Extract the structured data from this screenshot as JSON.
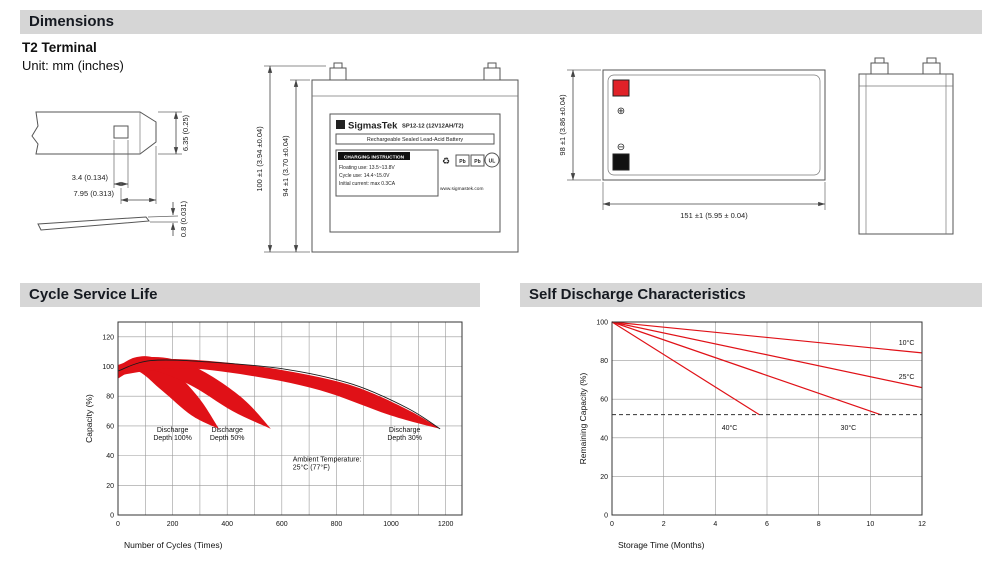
{
  "sections": {
    "dimensions": {
      "title": "Dimensions",
      "subtitle": "T2 Terminal",
      "unit": "Unit: mm (inches)"
    }
  },
  "colors": {
    "accent_red": "#e01117",
    "terminal_red": "#e02228",
    "header_gray": "#d6d6d6"
  },
  "drawings": {
    "terminal": {
      "dim_width_tab": "6.35 (0.25)",
      "dim_hole": "3.4 (0.134)",
      "dim_length": "7.95 (0.313)",
      "dim_thickness": "0.8 (0.031)"
    },
    "front": {
      "dim_total_height": "100 ±1 (3.94 ±0.04)",
      "dim_case_height": "94 ±1 (3.70 ±0.04)",
      "label": {
        "brand": "SigmasTek",
        "model": "SP12-12 (12V12AH/T2)",
        "type_line": "Rechargeable Sealed Lead-Acid Battery",
        "charging_title": "CHARGING INSTRUCTION",
        "charging_line1": "Floating use: 13.5~13.8V",
        "charging_line2": "Cycle use: 14.4~15.0V",
        "charging_line3": "Initial current: max 0.3CA",
        "website": "www.sigmastek.com",
        "recycle_icon": "♻",
        "pb": "Pb",
        "ul": "UL"
      }
    },
    "top": {
      "dim_height": "98 ±1 (3.86 ±0.04)",
      "dim_width": "151 ±1 (5.95 ± 0.04)",
      "plus_symbol": "⊕",
      "minus_symbol": "⊖"
    }
  },
  "chart_data": [
    {
      "id": "cycle-service-life",
      "type": "area",
      "title": "Cycle Service Life",
      "xlabel": "Number of Cycles (Times)",
      "ylabel": "Capacity (%)",
      "xlim": [
        0,
        1260
      ],
      "ylim": [
        0,
        130
      ],
      "xgrid": 100,
      "ygrid": 20,
      "xticks": [
        0,
        200,
        400,
        600,
        800,
        1000,
        1200
      ],
      "yticks": [
        0,
        20,
        40,
        60,
        80,
        100,
        120
      ],
      "grid": true,
      "series": [
        {
          "name": "Discharge Depth 100%",
          "type": "band",
          "color": "#e01117",
          "upper": [
            [
              0,
              100
            ],
            [
              60,
              106
            ],
            [
              130,
              106
            ],
            [
              210,
              96
            ],
            [
              300,
              78
            ],
            [
              370,
              58
            ]
          ],
          "lower": [
            [
              0,
              92
            ],
            [
              70,
              97
            ],
            [
              160,
              84
            ],
            [
              270,
              67
            ],
            [
              370,
              58
            ]
          ]
        },
        {
          "name": "Discharge Depth 50%",
          "type": "band",
          "color": "#e01117",
          "upper": [
            [
              0,
              101
            ],
            [
              90,
              106
            ],
            [
              200,
              105
            ],
            [
              320,
              96
            ],
            [
              460,
              78
            ],
            [
              560,
              58
            ]
          ],
          "lower": [
            [
              0,
              93
            ],
            [
              110,
              98
            ],
            [
              260,
              88
            ],
            [
              420,
              70
            ],
            [
              560,
              58
            ]
          ]
        },
        {
          "name": "Discharge Depth 30%",
          "type": "band",
          "color": "#e01117",
          "upper": [
            [
              0,
              101
            ],
            [
              160,
              105
            ],
            [
              380,
              103
            ],
            [
              620,
              97
            ],
            [
              860,
              87
            ],
            [
              1060,
              71
            ],
            [
              1180,
              58
            ]
          ],
          "lower": [
            [
              0,
              94
            ],
            [
              220,
              99
            ],
            [
              480,
              94
            ],
            [
              740,
              84
            ],
            [
              1000,
              67
            ],
            [
              1180,
              58
            ]
          ]
        },
        {
          "name": "envelope",
          "type": "line",
          "color": "#1a1a1a",
          "width": 0.9,
          "points": [
            [
              0,
              97
            ],
            [
              120,
              104
            ],
            [
              340,
              103
            ],
            [
              620,
              98
            ],
            [
              860,
              88
            ],
            [
              1060,
              72
            ],
            [
              1180,
              58
            ]
          ]
        }
      ],
      "annotations": [
        {
          "x": 200,
          "y": 56,
          "anchor": "middle",
          "lines": [
            "Discharge",
            "Depth 100%"
          ]
        },
        {
          "x": 400,
          "y": 56,
          "anchor": "middle",
          "lines": [
            "Discharge",
            "Depth 50%"
          ]
        },
        {
          "x": 1050,
          "y": 56,
          "anchor": "middle",
          "lines": [
            "Discharge",
            "Depth 30%"
          ]
        },
        {
          "x": 640,
          "y": 36,
          "anchor": "start",
          "lines": [
            "Ambient Temperature:",
            "25°C (77°F)"
          ]
        }
      ]
    },
    {
      "id": "self-discharge",
      "type": "line",
      "title": "Self Discharge Characteristics",
      "xlabel": "Storage Time (Months)",
      "ylabel": "Remaining Capacity (%)",
      "xlim": [
        0,
        12
      ],
      "ylim": [
        0,
        100
      ],
      "xgrid": 2,
      "ygrid": 20,
      "xticks": [
        0,
        2,
        4,
        6,
        8,
        10,
        12
      ],
      "yticks": [
        0,
        20,
        40,
        60,
        80,
        100
      ],
      "grid": true,
      "series": [
        {
          "name": "10C",
          "type": "line",
          "color": "#e01117",
          "width": 1.2,
          "points": [
            [
              0,
              100
            ],
            [
              12,
              84
            ]
          ]
        },
        {
          "name": "25C",
          "type": "line",
          "color": "#e01117",
          "width": 1.2,
          "points": [
            [
              0,
              100
            ],
            [
              12,
              66
            ]
          ]
        },
        {
          "name": "30C",
          "type": "line",
          "color": "#e01117",
          "width": 1.2,
          "points": [
            [
              0,
              100
            ],
            [
              10.4,
              52
            ]
          ]
        },
        {
          "name": "40C",
          "type": "line",
          "color": "#e01117",
          "width": 1.2,
          "points": [
            [
              0,
              100
            ],
            [
              5.7,
              52
            ]
          ]
        },
        {
          "name": "50-percent-threshold",
          "type": "line",
          "color": "#333333",
          "width": 1,
          "dash": "4 3",
          "points": [
            [
              0,
              52
            ],
            [
              12,
              52
            ]
          ]
        }
      ],
      "annotations": [
        {
          "x": 11.1,
          "y": 88,
          "anchor": "start",
          "lines": [
            "10°C"
          ]
        },
        {
          "x": 11.1,
          "y": 70.5,
          "anchor": "start",
          "lines": [
            "25°C"
          ]
        },
        {
          "x": 9.15,
          "y": 44,
          "anchor": "middle",
          "lines": [
            "30°C"
          ]
        },
        {
          "x": 4.55,
          "y": 44,
          "anchor": "middle",
          "lines": [
            "40°C"
          ]
        }
      ]
    }
  ]
}
